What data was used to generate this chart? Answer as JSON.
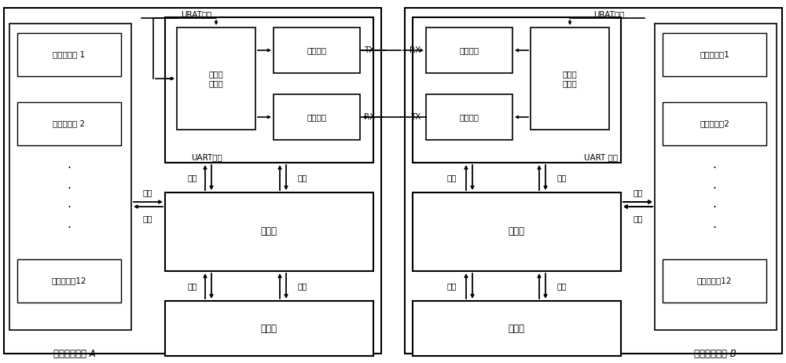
{
  "bg_color": "#ffffff",
  "title_A": "信号捕获系统 A",
  "title_B": "信号捕获系统 B",
  "correlator_labels_A": [
    "通道相关器 1",
    "通道相关器 2",
    "通道相关器12"
  ],
  "correlator_labels_B": [
    "通道相关器1",
    "通道相关器2",
    "通道相关器12"
  ],
  "uart_label_A": "UART模块",
  "uart_label_B": "UART 模块",
  "processor_label": "处理器",
  "memory_label": "存储器",
  "baud_controller": "波特率\n控制器",
  "send_channel": "发送通道",
  "recv_channel": "接收通道",
  "urat_clock_A": "URAT时钟",
  "urat_clock_B": "URAT时钟",
  "data_label": "数据",
  "control_label": "控制",
  "TX": "TX",
  "RX": "RX"
}
